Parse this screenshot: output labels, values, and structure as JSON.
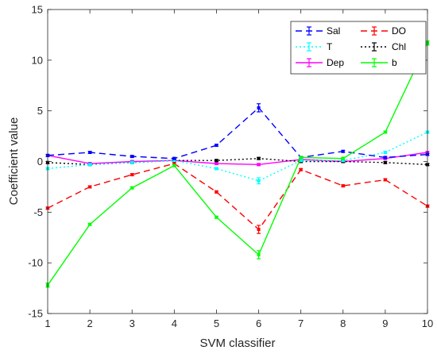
{
  "chart_data": {
    "type": "line",
    "xlabel": "SVM classifier",
    "ylabel": "Coefficient value",
    "x": [
      1,
      2,
      3,
      4,
      5,
      6,
      7,
      8,
      9,
      10
    ],
    "xlim": [
      1,
      10
    ],
    "ylim": [
      -15,
      15
    ],
    "xticks": [
      1,
      2,
      3,
      4,
      5,
      6,
      7,
      8,
      9,
      10
    ],
    "yticks": [
      -15,
      -10,
      -5,
      0,
      5,
      10,
      15
    ],
    "grid": false,
    "legend": "top-right",
    "series": [
      {
        "name": "Sal",
        "color": "#0000ff",
        "dash": "dashed",
        "values": [
          0.6,
          0.9,
          0.5,
          0.3,
          1.6,
          5.3,
          0.4,
          1.0,
          0.4,
          0.7
        ],
        "errors": [
          0.1,
          0.1,
          0.1,
          0.1,
          0.1,
          0.4,
          0.1,
          0.1,
          0.1,
          0.1
        ]
      },
      {
        "name": "DO",
        "color": "#ff0000",
        "dash": "dashed",
        "values": [
          -4.6,
          -2.5,
          -1.3,
          -0.2,
          -3.0,
          -6.7,
          -0.8,
          -2.4,
          -1.8,
          -4.4
        ],
        "errors": [
          0.1,
          0.1,
          0.1,
          0.1,
          0.1,
          0.4,
          0.1,
          0.1,
          0.1,
          0.1
        ]
      },
      {
        "name": "T",
        "color": "#00ffff",
        "dash": "dotted",
        "values": [
          -0.7,
          -0.3,
          -0.1,
          0.1,
          -0.7,
          -1.9,
          0.1,
          0.1,
          0.9,
          2.9
        ],
        "errors": [
          0.1,
          0.1,
          0.1,
          0.1,
          0.1,
          0.3,
          0.1,
          0.1,
          0.1,
          0.1
        ]
      },
      {
        "name": "Chl",
        "color": "#000000",
        "dash": "dotted",
        "values": [
          -0.1,
          -0.3,
          -0.1,
          0.1,
          0.1,
          0.3,
          0.0,
          0.0,
          -0.1,
          -0.3
        ],
        "errors": [
          0.1,
          0.1,
          0.1,
          0.1,
          0.1,
          0.1,
          0.1,
          0.1,
          0.1,
          0.1
        ]
      },
      {
        "name": "Dep",
        "color": "#ff00ff",
        "dash": "solid",
        "values": [
          0.6,
          -0.2,
          0.0,
          0.1,
          -0.2,
          -0.3,
          0.2,
          0.0,
          0.3,
          0.9
        ],
        "errors": [
          0.1,
          0.1,
          0.1,
          0.1,
          0.1,
          0.1,
          0.1,
          0.1,
          0.1,
          0.1
        ]
      },
      {
        "name": "b",
        "color": "#00ff00",
        "dash": "solid",
        "values": [
          -12.2,
          -6.2,
          -2.6,
          -0.4,
          -5.5,
          -9.2,
          0.4,
          0.3,
          2.9,
          11.7
        ],
        "errors": [
          0.2,
          0.1,
          0.1,
          0.1,
          0.1,
          0.4,
          0.1,
          0.1,
          0.1,
          0.2
        ]
      }
    ]
  }
}
